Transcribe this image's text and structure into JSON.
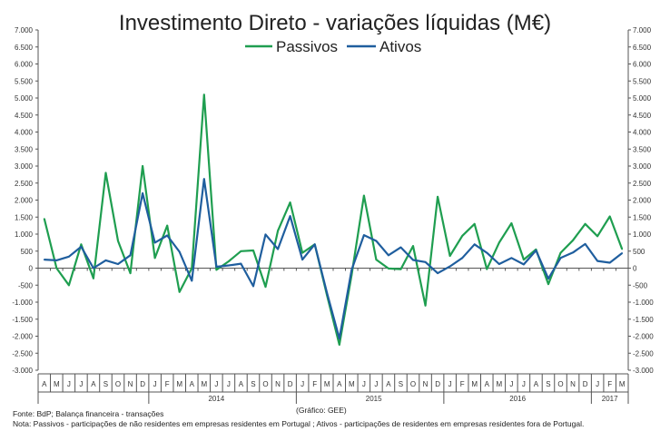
{
  "chart_data": {
    "type": "line",
    "title": "Investimento  Direto - variações líquidas (M€)",
    "ylim": [
      -3000,
      7000
    ],
    "yticks": [
      -3000,
      -2500,
      -2000,
      -1500,
      -1000,
      -500,
      0,
      500,
      1000,
      1500,
      2000,
      2500,
      3000,
      3500,
      4000,
      4500,
      5000,
      5500,
      6000,
      6500,
      7000
    ],
    "ytick_labels": [
      "-3.000",
      "-2.500",
      "-2.000",
      "-1.500",
      "-1.000",
      "-500",
      "0",
      "500",
      "1.000",
      "1.500",
      "2.000",
      "2.500",
      "3.000",
      "3.500",
      "4.000",
      "4.500",
      "5.000",
      "5.500",
      "6.000",
      "6.500",
      "7.000"
    ],
    "categories": [
      "A",
      "M",
      "J",
      "J",
      "A",
      "S",
      "O",
      "N",
      "D",
      "J",
      "F",
      "M",
      "A",
      "M",
      "J",
      "J",
      "A",
      "S",
      "O",
      "N",
      "D",
      "J",
      "F",
      "M",
      "A",
      "M",
      "J",
      "J",
      "A",
      "S",
      "O",
      "N",
      "D",
      "J",
      "F",
      "M",
      "A",
      "M",
      "J",
      "J",
      "A",
      "S",
      "O",
      "N",
      "D",
      "J",
      "F",
      "M"
    ],
    "year_labels": [
      "2014",
      "2015",
      "2016",
      "2017"
    ],
    "series": [
      {
        "name": "Passivos",
        "color": "#1f9e50",
        "values": [
          1450,
          0,
          -500,
          700,
          -300,
          2800,
          800,
          -150,
          3000,
          300,
          1250,
          -700,
          0,
          5100,
          -50,
          200,
          500,
          520,
          -550,
          1100,
          1930,
          450,
          700,
          -800,
          -2250,
          -200,
          2130,
          250,
          -10,
          -30,
          650,
          -1100,
          2100,
          360,
          950,
          1300,
          -30,
          750,
          1320,
          250,
          550,
          -470,
          450,
          820,
          1300,
          940,
          1520,
          560
        ]
      },
      {
        "name": "Ativos",
        "color": "#1f5e9e",
        "values": [
          250,
          230,
          340,
          630,
          0,
          230,
          120,
          380,
          2200,
          750,
          960,
          480,
          -370,
          2620,
          40,
          80,
          130,
          -530,
          990,
          560,
          1530,
          250,
          700,
          -730,
          -2070,
          -50,
          970,
          800,
          380,
          610,
          240,
          180,
          -150,
          50,
          300,
          700,
          450,
          120,
          300,
          110,
          520,
          -310,
          300,
          460,
          710,
          210,
          160,
          440
        ]
      }
    ]
  },
  "footer": {
    "source": "Fonte: BdP; Balança financeira - transações",
    "credit": "(Gráfico: GEE)",
    "note": "Nota: Passivos - participações de não residentes em empresas residentes em Portugal ; Ativos - participações de residentes em empresas residentes fora de Portugal."
  }
}
